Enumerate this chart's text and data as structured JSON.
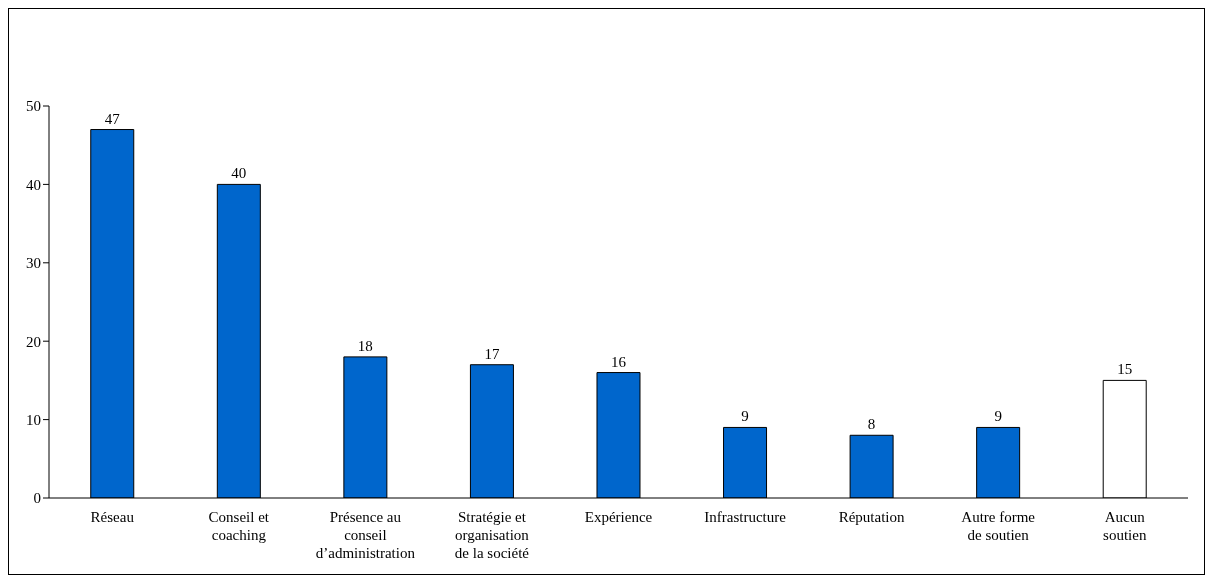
{
  "chart_data": {
    "type": "bar",
    "categories": [
      "Réseau",
      "Conseil et coaching",
      "Présence au conseil d’administration",
      "Stratégie et organisation de la société",
      "Expérience",
      "Infrastructure",
      "Réputation",
      "Autre forme de soutien",
      "Aucun soutien"
    ],
    "values": [
      47,
      40,
      18,
      17,
      16,
      9,
      8,
      9,
      15
    ],
    "colors": [
      "#0066cc",
      "#0066cc",
      "#0066cc",
      "#0066cc",
      "#0066cc",
      "#0066cc",
      "#0066cc",
      "#0066cc",
      "#ffffff"
    ],
    "ylim": [
      0,
      50
    ],
    "yticks": [
      0,
      10,
      20,
      30,
      40,
      50
    ],
    "grid": false,
    "legend": false,
    "data_labels": true
  }
}
